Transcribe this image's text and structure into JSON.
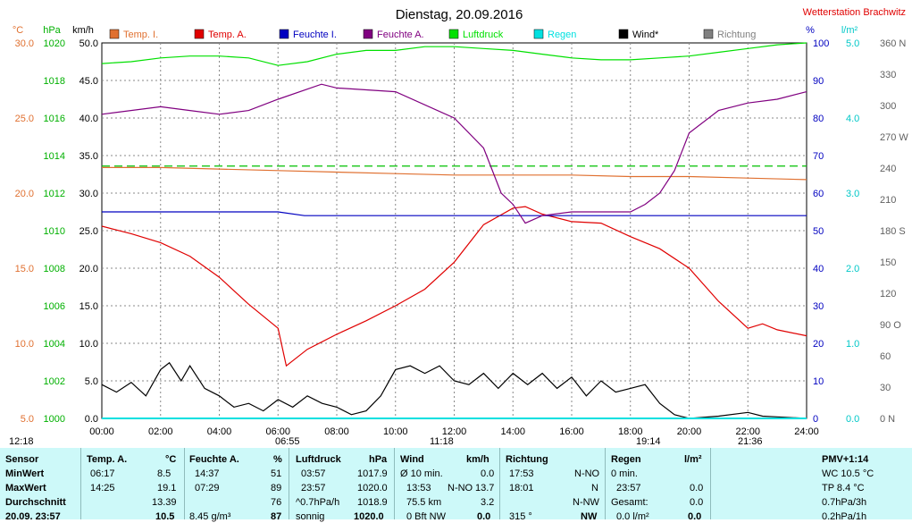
{
  "header": {
    "title": "Dienstag, 20.09.2016",
    "station": "Wetterstation Brachwitz"
  },
  "units": {
    "temp": "°C",
    "pressure": "hPa",
    "wind": "km/h",
    "humidity": "%",
    "rain": "l/m²"
  },
  "legend": [
    {
      "label": "Temp. I.",
      "color": "#e07030"
    },
    {
      "label": "Temp. A.",
      "color": "#e00000"
    },
    {
      "label": "Feuchte I.",
      "color": "#0000c0"
    },
    {
      "label": "Feuchte A.",
      "color": "#800080"
    },
    {
      "label": "Luftdruck",
      "color": "#00e000"
    },
    {
      "label": "Regen",
      "color": "#00e0e0"
    },
    {
      "label": "Wind*",
      "color": "#000000"
    },
    {
      "label": "Richtung",
      "color": "#808080"
    }
  ],
  "chart_data": {
    "type": "line",
    "title": "Dienstag, 20.09.2016",
    "x_ticks": [
      "00:00",
      "02:00",
      "04:00",
      "06:00",
      "08:00",
      "10:00",
      "12:00",
      "14:00",
      "16:00",
      "18:00",
      "20:00",
      "22:00",
      "24:00"
    ],
    "xlim": [
      0,
      24
    ],
    "axes": {
      "temp": {
        "ticks": [
          "5.0",
          "10.0",
          "15.0",
          "20.0",
          "25.0",
          "30.0"
        ],
        "range": [
          5,
          30
        ],
        "color": "#e07030"
      },
      "pressure": {
        "ticks": [
          "1000",
          "1002",
          "1004",
          "1006",
          "1008",
          "1010",
          "1012",
          "1014",
          "1016",
          "1018",
          "1020"
        ],
        "range": [
          1000,
          1020
        ],
        "color": "#00b000"
      },
      "wind": {
        "ticks": [
          "0.0",
          "5.0",
          "10.0",
          "15.0",
          "20.0",
          "25.0",
          "30.0",
          "35.0",
          "40.0",
          "45.0",
          "50.0"
        ],
        "range": [
          0,
          50
        ],
        "color": "#000000"
      },
      "humidity": {
        "ticks": [
          "0",
          "10",
          "20",
          "30",
          "40",
          "50",
          "60",
          "70",
          "80",
          "90",
          "100"
        ],
        "range": [
          0,
          100
        ],
        "color": "#0000c0"
      },
      "rain": {
        "ticks": [
          "0.0",
          "1.0",
          "2.0",
          "3.0",
          "4.0",
          "5.0"
        ],
        "range": [
          0,
          5
        ],
        "color": "#00c8c8"
      },
      "direction": {
        "ticks": [
          "0 N",
          "30",
          "60",
          "90 O",
          "120",
          "150",
          "180 S",
          "210",
          "240",
          "270 W",
          "300",
          "330",
          "360 N"
        ],
        "range": [
          0,
          360
        ],
        "color": "#606060"
      }
    },
    "series": [
      {
        "name": "Temp. I.",
        "axis": "temp",
        "color": "#e07030",
        "x": [
          0,
          2,
          4,
          6,
          8,
          10,
          12,
          14,
          16,
          18,
          20,
          22,
          24
        ],
        "y": [
          21.7,
          21.7,
          21.6,
          21.5,
          21.4,
          21.3,
          21.2,
          21.2,
          21.2,
          21.1,
          21.1,
          21.0,
          20.9
        ]
      },
      {
        "name": "Temp. A.",
        "axis": "temp",
        "color": "#e00000",
        "x": [
          0,
          1,
          2,
          3,
          4,
          5,
          6,
          6.28,
          7,
          8,
          9,
          10,
          11,
          12,
          13,
          14,
          14.42,
          15,
          16,
          17,
          18,
          19,
          20,
          21,
          22,
          22.5,
          23,
          24
        ],
        "y": [
          17.8,
          17.3,
          16.7,
          15.8,
          14.4,
          12.6,
          11.0,
          8.5,
          9.6,
          10.6,
          11.5,
          12.5,
          13.6,
          15.4,
          17.9,
          19.0,
          19.1,
          18.6,
          18.1,
          18.0,
          17.1,
          16.3,
          15.0,
          12.8,
          11.0,
          11.3,
          10.9,
          10.5
        ]
      },
      {
        "name": "Feuchte I.",
        "axis": "humidity",
        "color": "#0000c0",
        "x": [
          0,
          3,
          6,
          6.9,
          10,
          14,
          18,
          20,
          22,
          24
        ],
        "y": [
          55,
          55,
          55,
          54,
          54,
          54,
          54,
          54,
          54,
          54
        ]
      },
      {
        "name": "Feuchte A.",
        "axis": "humidity",
        "color": "#800080",
        "x": [
          0,
          2,
          3,
          4,
          5,
          6,
          7.48,
          8,
          10,
          12,
          13,
          13.6,
          14,
          14.42,
          15,
          16,
          17,
          18,
          18.5,
          19,
          19.5,
          20,
          21,
          22,
          23,
          24
        ],
        "y": [
          81,
          83,
          82,
          81,
          82,
          85,
          89,
          88,
          87,
          80,
          72,
          60,
          57,
          52,
          54,
          55,
          55,
          55,
          57,
          60,
          66,
          76,
          82,
          84,
          85,
          87
        ]
      },
      {
        "name": "Luftdruck",
        "axis": "pressure",
        "color": "#00e000",
        "x": [
          0,
          1,
          2,
          3,
          4,
          5,
          6,
          7,
          8,
          9,
          10,
          11,
          12,
          13,
          14,
          15,
          16,
          17,
          18,
          19,
          20,
          21,
          22,
          23,
          24
        ],
        "y": [
          1018.9,
          1019.0,
          1019.2,
          1019.3,
          1019.3,
          1019.2,
          1018.8,
          1019.0,
          1019.4,
          1019.6,
          1019.6,
          1019.8,
          1019.8,
          1019.7,
          1019.6,
          1019.4,
          1019.2,
          1019.1,
          1019.1,
          1019.2,
          1019.3,
          1019.5,
          1019.7,
          1019.9,
          1020.0
        ]
      },
      {
        "name": "Wind*",
        "axis": "wind",
        "color": "#000000",
        "x": [
          0,
          0.5,
          1,
          1.5,
          2,
          2.3,
          2.7,
          3,
          3.5,
          4,
          4.5,
          5,
          5.5,
          6,
          6.5,
          7,
          7.5,
          8,
          8.5,
          9,
          9.5,
          10,
          10.5,
          11,
          11.5,
          12,
          12.5,
          13,
          13.5,
          14,
          14.5,
          15,
          15.5,
          16,
          16.5,
          17,
          17.5,
          18,
          18.5,
          19,
          19.5,
          20,
          21,
          22,
          22.5,
          23,
          24
        ],
        "y": [
          4.5,
          3.5,
          4.8,
          3,
          6.5,
          7.4,
          5,
          7,
          4,
          3,
          1.5,
          2,
          1,
          2.5,
          1.5,
          3,
          2,
          1.5,
          0.5,
          1,
          3,
          6.5,
          7,
          6,
          7,
          5,
          4.5,
          6,
          4,
          6,
          4.5,
          6,
          4,
          5.5,
          3,
          5,
          3.5,
          4,
          4.5,
          2,
          0.5,
          0,
          0.3,
          0.8,
          0.3,
          0.2,
          0
        ]
      },
      {
        "name": "Regen",
        "axis": "rain",
        "color": "#00e0e0",
        "x": [
          0,
          24
        ],
        "y": [
          0,
          0
        ]
      }
    ],
    "reference_lines": [
      {
        "axis": "temp",
        "value": 21.8,
        "color": "#00c000",
        "style": "dashed"
      }
    ],
    "bottom_markers": [
      "12:18",
      "06:55",
      "11:18",
      "19:14",
      "21:36"
    ]
  },
  "table": {
    "headers": {
      "sensor": "Sensor",
      "temp": "Temp. A.",
      "temp_unit": "°C",
      "hum": "Feuchte A.",
      "hum_unit": "%",
      "press": "Luftdruck",
      "press_unit": "hPa",
      "wind": "Wind",
      "wind_unit": "km/h",
      "dir": "Richtung",
      "rain": "Regen",
      "rain_unit": "l/m²",
      "pmv": "PMV+1:14"
    },
    "rows": {
      "min": {
        "label": "MinWert",
        "temp_time": "06:17",
        "temp": "8.5",
        "hum_time": "14:37",
        "hum": "51",
        "press_time": "03:57",
        "press": "1017.9",
        "wind_label": "Ø 10 min.",
        "wind": "0.0",
        "dir_time": "17:53",
        "dir": "N-NO",
        "rain_label": "0 min.",
        "rain": "",
        "extra": "WC 10.5 °C"
      },
      "max": {
        "label": "MaxWert",
        "temp_time": "14:25",
        "temp": "19.1",
        "hum_time": "07:29",
        "hum": "89",
        "press_time": "23:57",
        "press": "1020.0",
        "wind_time": "13:53",
        "wind_dir": "N-NO",
        "wind": "13.7",
        "dir_time": "18:01",
        "dir": "N",
        "rain_time": "23:57",
        "rain": "0.0",
        "extra": "TP 8.4 °C"
      },
      "avg": {
        "label": "Durchschnitt",
        "temp": "13.39",
        "hum": "76",
        "press_trend": "^0.7hPa/h",
        "press": "1018.9",
        "wind_dist": "75.5 km",
        "wind": "3.2",
        "dir": "N-NW",
        "rain_label": "Gesamt:",
        "rain": "0.0",
        "extra": "0.7hPa/3h"
      },
      "now": {
        "label": "20.09. 23:57",
        "temp": "10.5",
        "hum_abs": "8.45 g/m³",
        "hum": "87",
        "press_text": "sonnig",
        "press": "1020.0",
        "wind_label": "0 Bft NW",
        "wind": "0.0",
        "dir_deg": "315 °",
        "dir": "NW",
        "rain_rate": "0.0 l/m²",
        "rain": "0.0",
        "extra": "0.2hPa/1h"
      }
    }
  }
}
